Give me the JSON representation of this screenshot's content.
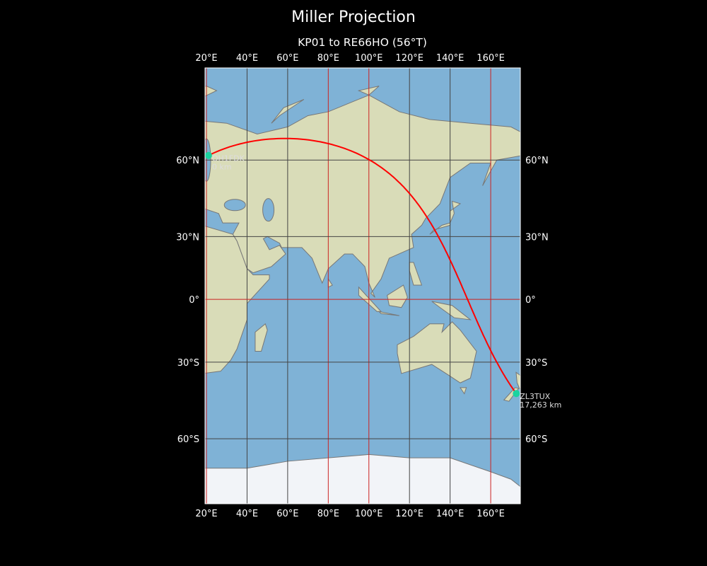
{
  "title": "Miller Projection",
  "subtitle": "KP01 to RE66HO (56°T)",
  "map": {
    "projection": "miller",
    "lon_range": [
      19.3,
      174.6
    ],
    "lat_range": [
      -78.1,
      83.7
    ],
    "colors": {
      "ocean": "#7fb2d6",
      "land": "#d9dcb8",
      "ice": "#f2f4f8",
      "coast": "#777777",
      "gridline": "#444444",
      "equator_meridian": "#cc2222",
      "path": "#ff0000",
      "marker": "#1ad3a0"
    },
    "lon_ticks": [
      {
        "value": 20,
        "label": "20°E"
      },
      {
        "value": 40,
        "label": "40°E"
      },
      {
        "value": 60,
        "label": "60°E"
      },
      {
        "value": 80,
        "label": "80°E"
      },
      {
        "value": 100,
        "label": "100°E"
      },
      {
        "value": 120,
        "label": "120°E"
      },
      {
        "value": 140,
        "label": "140°E"
      },
      {
        "value": 160,
        "label": "160°E"
      }
    ],
    "lat_ticks": [
      {
        "value": 60,
        "label": "60°N"
      },
      {
        "value": 30,
        "label": "30°N"
      },
      {
        "value": 0,
        "label": "0°"
      },
      {
        "value": -30,
        "label": "30°S"
      },
      {
        "value": -60,
        "label": "60°S"
      }
    ],
    "red_meridians": [
      20,
      80,
      100,
      160
    ],
    "stations": [
      {
        "call": "OH1FDK",
        "distance": "0 km",
        "lon": 21.0,
        "lat": 61.5
      },
      {
        "call": "ZL3TUX",
        "distance": "17,263 km",
        "lon": 172.6,
        "lat": -43.4
      }
    ]
  }
}
